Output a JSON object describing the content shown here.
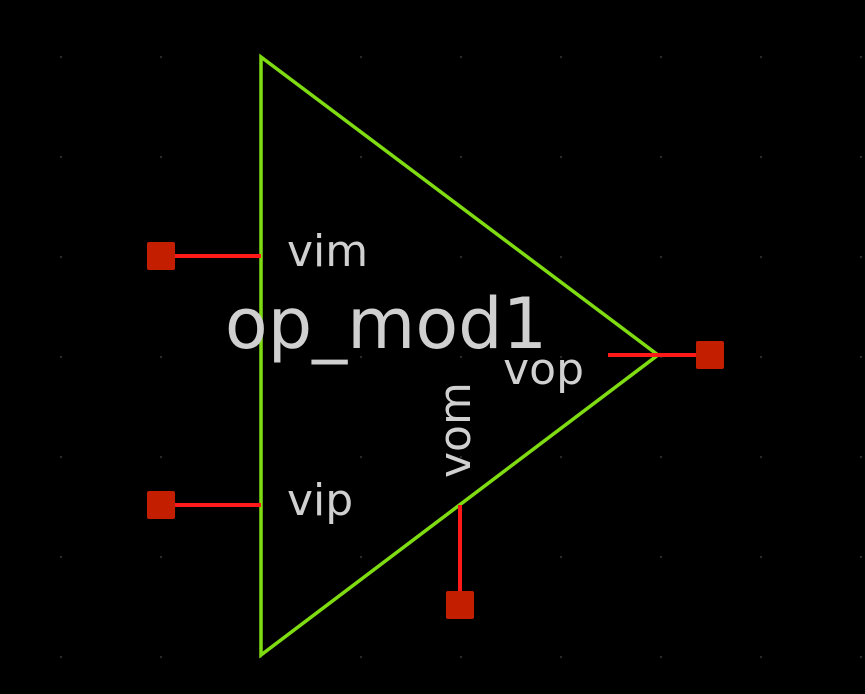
{
  "symbol": {
    "name": "op_mod1",
    "colors": {
      "background": "#000000",
      "body_outline": "#7fdc12",
      "pin_wire": "#ff1a1a",
      "pin_terminal": "#c41e00",
      "grid_dot": "#2a2a2a",
      "label_text": "#d0d0d0"
    },
    "pins": {
      "vim": {
        "label": "vim",
        "direction": "input"
      },
      "vip": {
        "label": "vip",
        "direction": "input"
      },
      "vop": {
        "label": "vop",
        "direction": "output"
      },
      "vom": {
        "label": "vom",
        "direction": "output"
      }
    }
  }
}
